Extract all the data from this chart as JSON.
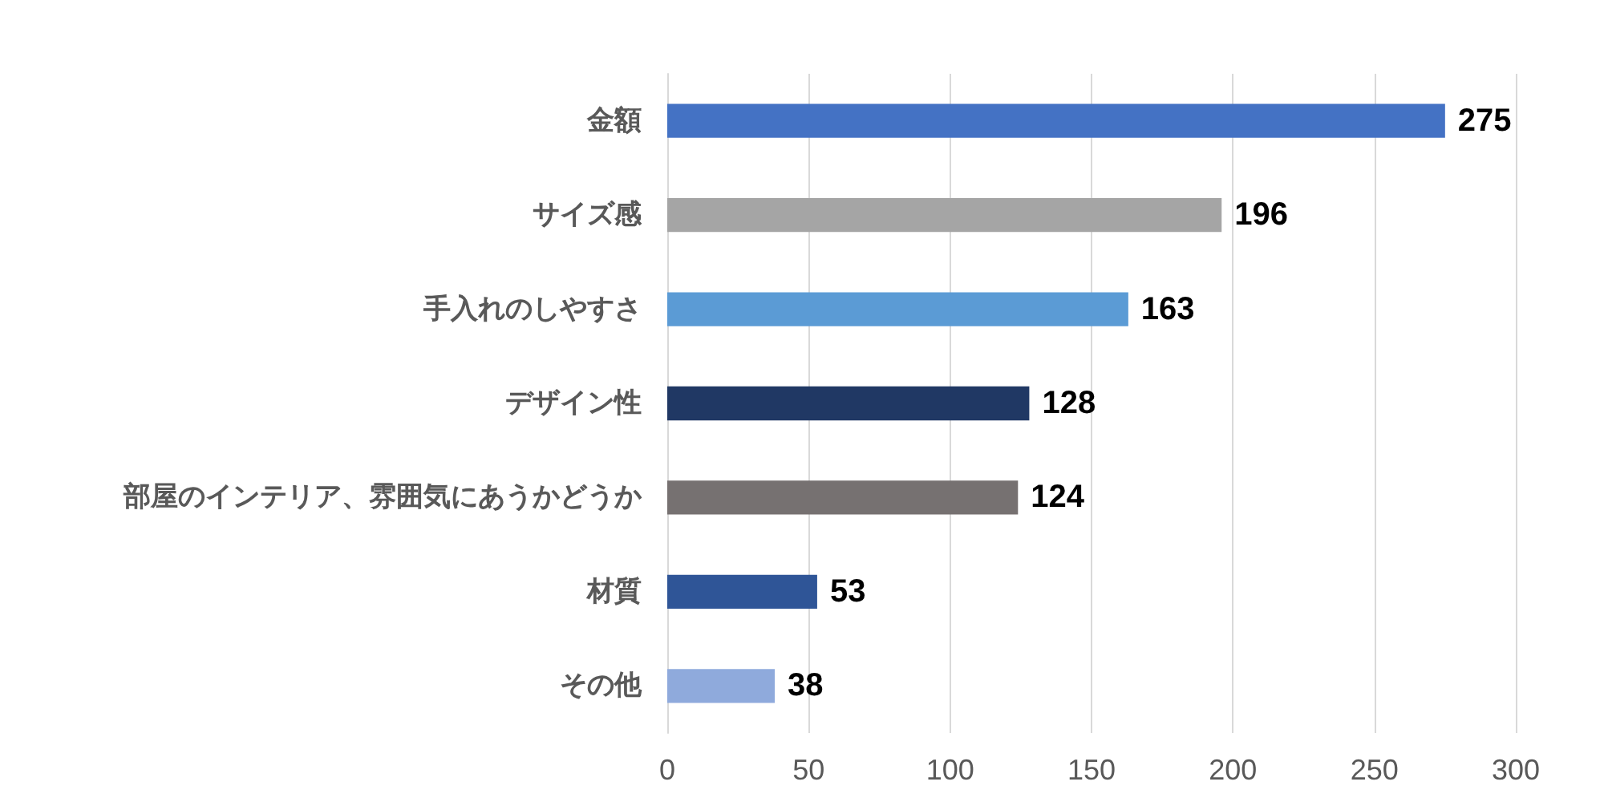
{
  "chart_data": {
    "type": "bar",
    "orientation": "horizontal",
    "categories": [
      "金額",
      "サイズ感",
      "手入れのしやすさ",
      "デザイン性",
      "部屋のインテリア、雰囲気にあうかどうか",
      "材質",
      "その他"
    ],
    "values": [
      275,
      196,
      163,
      128,
      124,
      53,
      38
    ],
    "colors": [
      "#4472c4",
      "#a5a5a5",
      "#5b9bd5",
      "#203864",
      "#767171",
      "#2f5597",
      "#8faadc"
    ],
    "xlim": [
      0,
      300
    ],
    "xticks": [
      0,
      50,
      100,
      150,
      200,
      250,
      300
    ],
    "grid": "x",
    "data_labels": true
  }
}
